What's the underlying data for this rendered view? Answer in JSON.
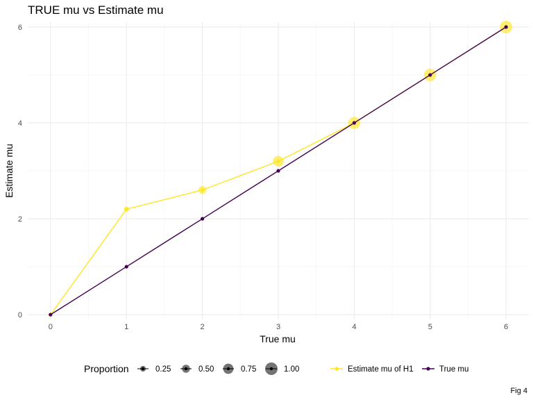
{
  "chart_data": {
    "type": "line",
    "title": "TRUE mu vs Estimate mu",
    "xlabel": "True mu",
    "ylabel": "Estimate mu",
    "caption": "Fig 4",
    "xlim": [
      -0.3,
      6.3
    ],
    "ylim": [
      -0.1,
      6.1
    ],
    "xticks": [
      "0",
      "1",
      "2",
      "3",
      "4",
      "5",
      "6"
    ],
    "yticks": [
      "0",
      "2",
      "4",
      "6"
    ],
    "grid": true,
    "legend_position": "bottom",
    "series": [
      {
        "name": "Estimate mu of H1",
        "color": "#FDE725",
        "x": [
          0,
          1,
          2,
          3,
          4,
          5,
          6
        ],
        "y": [
          0,
          2.2,
          2.6,
          3.2,
          4.0,
          5.0,
          6.0
        ],
        "proportion": [
          0.05,
          0.2,
          0.5,
          0.8,
          0.95,
          0.99,
          1.0
        ]
      },
      {
        "name": "True mu",
        "color": "#440154",
        "x": [
          0,
          1,
          2,
          3,
          4,
          5,
          6
        ],
        "y": [
          0,
          1,
          2,
          3,
          4,
          5,
          6
        ]
      }
    ],
    "size_legend": {
      "title": "Proportion",
      "values": [
        0.25,
        0.5,
        0.75,
        1.0
      ],
      "labels": [
        "0.25",
        "0.50",
        "0.75",
        "1.00"
      ]
    }
  }
}
